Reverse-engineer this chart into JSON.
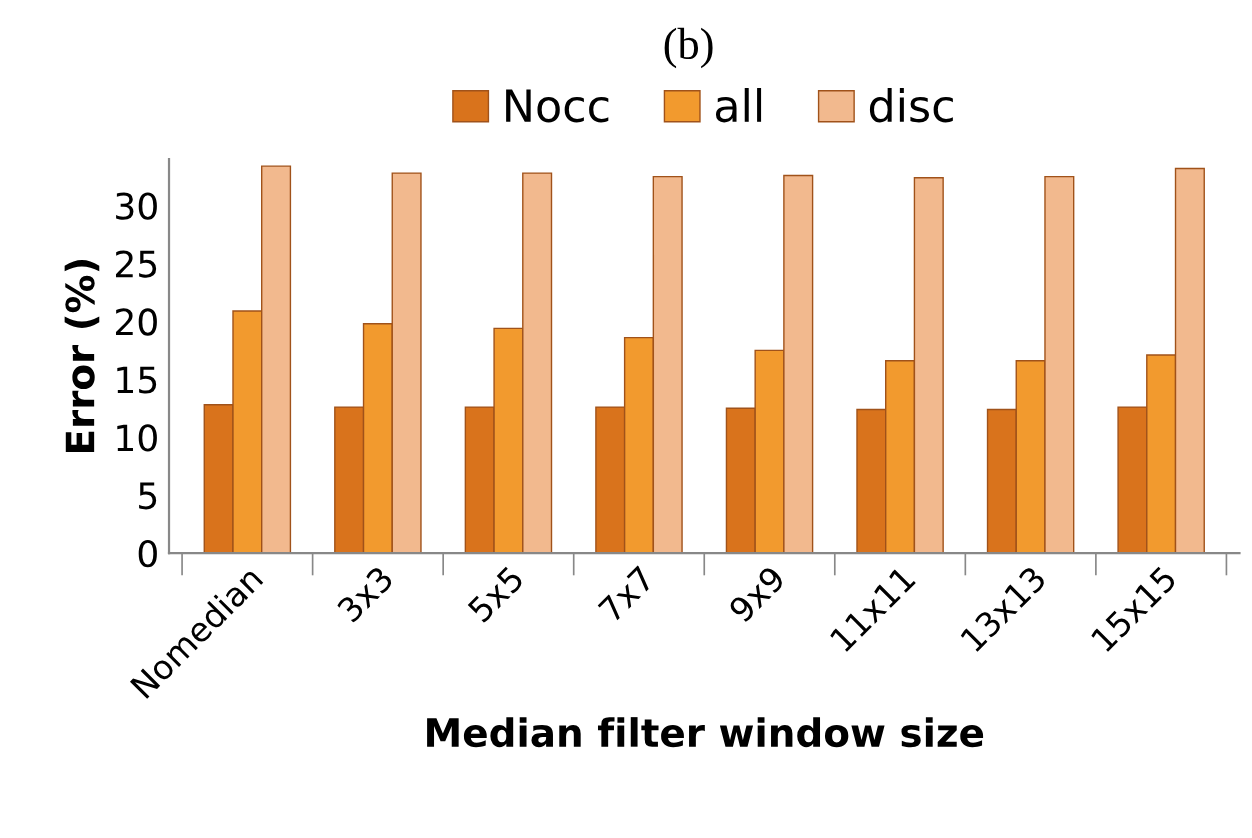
{
  "chart_data": {
    "type": "bar",
    "title": "(b)",
    "xlabel": "Median filter window size",
    "ylabel": "Error (%)",
    "categories": [
      "Nomedian",
      "3x3",
      "5x5",
      "7x7",
      "9x9",
      "11x11",
      "13x13",
      "15x15"
    ],
    "series": [
      {
        "name": "Nocc",
        "color": "#d9731c",
        "values": [
          12.8,
          12.6,
          12.6,
          12.6,
          12.5,
          12.4,
          12.4,
          12.6
        ]
      },
      {
        "name": "all",
        "color": "#f29a2e",
        "values": [
          20.9,
          19.8,
          19.4,
          18.6,
          17.5,
          16.6,
          16.6,
          17.1
        ]
      },
      {
        "name": "disc",
        "color": "#f2b98e",
        "values": [
          33.4,
          32.8,
          32.8,
          32.5,
          32.6,
          32.4,
          32.5,
          33.2
        ]
      }
    ],
    "ylim": [
      0,
      34
    ],
    "yticks": [
      0,
      5,
      10,
      15,
      20,
      25,
      30
    ],
    "grid": false,
    "legend": "top"
  }
}
